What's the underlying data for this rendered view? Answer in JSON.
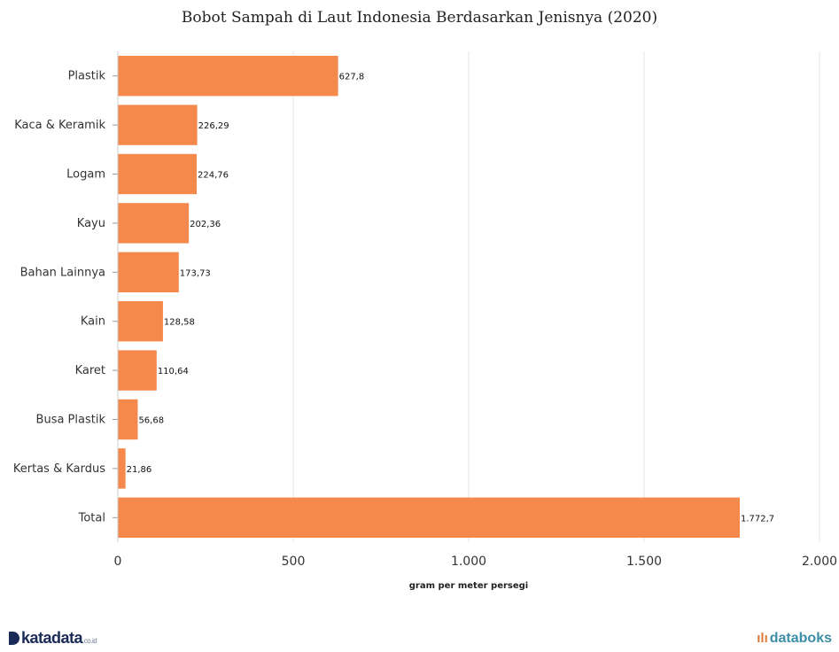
{
  "chart_data": {
    "type": "bar",
    "orientation": "horizontal",
    "title": "Bobot Sampah di Laut Indonesia Berdasarkan Jenisnya (2020)",
    "xlabel": "gram per meter persegi",
    "ylabel": "",
    "categories": [
      "Plastik",
      "Kaca & Keramik",
      "Logam",
      "Kayu",
      "Bahan Lainnya",
      "Kain",
      "Karet",
      "Busa Plastik",
      "Kertas & Kardus",
      "Total"
    ],
    "values": [
      627.8,
      226.29,
      224.76,
      202.36,
      173.73,
      128.58,
      110.64,
      56.68,
      21.86,
      1772.7
    ],
    "value_labels": [
      "627,8",
      "226,29",
      "224,76",
      "202,36",
      "173,73",
      "128,58",
      "110,64",
      "56,68",
      "21,86",
      "1.772,7"
    ],
    "xlim": [
      0,
      2000
    ],
    "x_ticks": [
      0,
      500,
      1000,
      1500,
      2000
    ],
    "x_tick_labels": [
      "0",
      "500",
      "1.000",
      "1.500",
      "2.000"
    ],
    "grid": "vertical",
    "bar_color": "#f5894b"
  },
  "footer": {
    "left_brand": "katadata",
    "left_domain": ".co.id",
    "right_brand": "databoks"
  }
}
